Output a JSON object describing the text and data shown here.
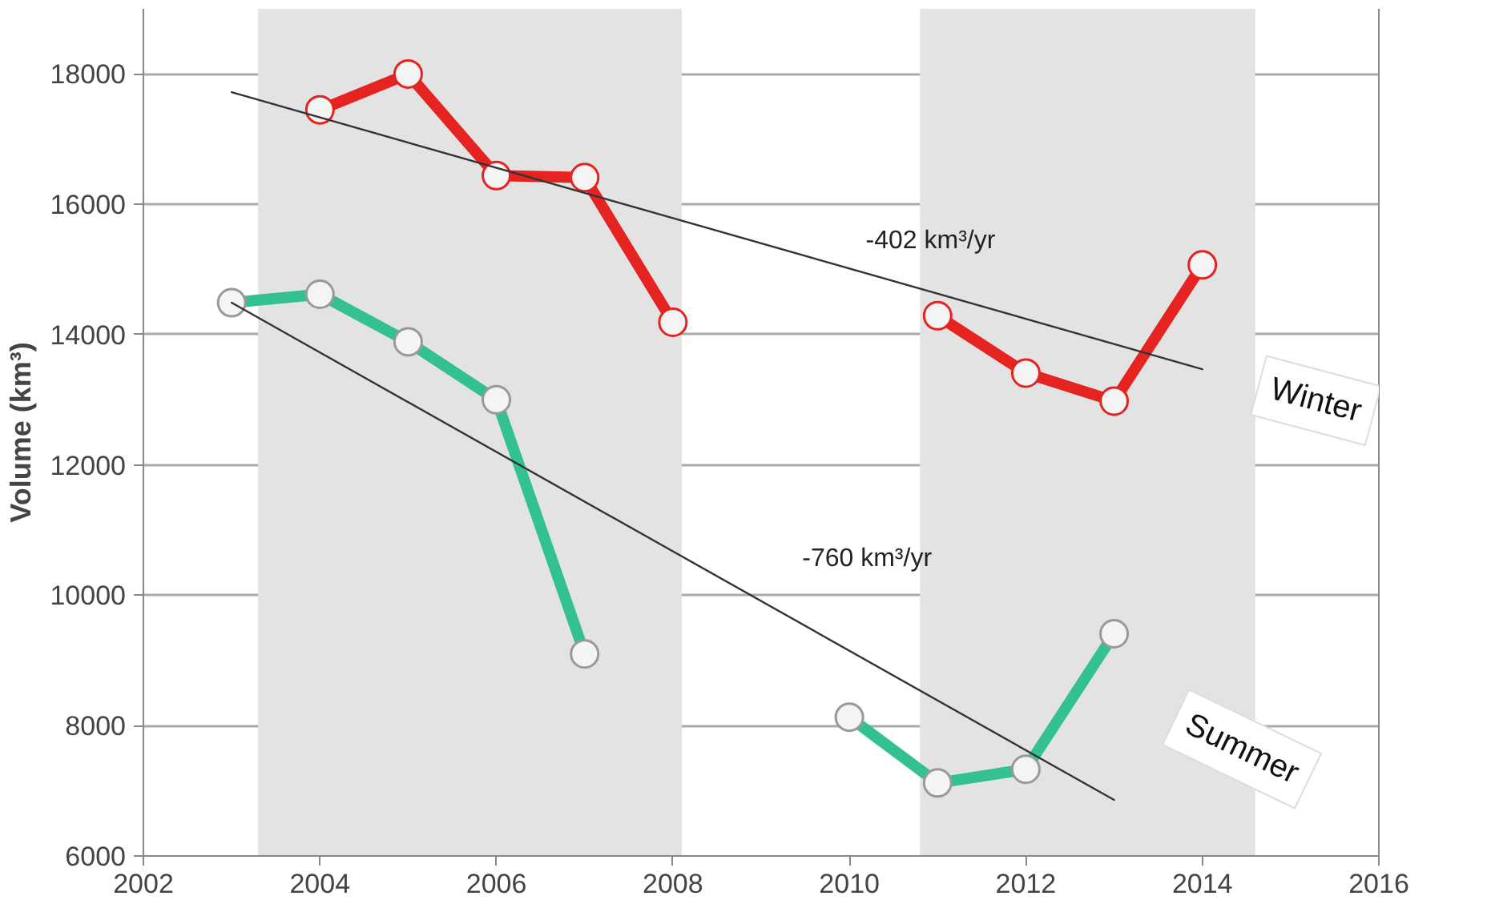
{
  "chart_data": {
    "type": "line",
    "ylabel": "Volume (km³)",
    "xlim": [
      2002,
      2016
    ],
    "ylim": [
      6000,
      19000
    ],
    "xticks": [
      2002,
      2004,
      2006,
      2008,
      2010,
      2012,
      2014,
      2016
    ],
    "yticks": [
      6000,
      8000,
      10000,
      12000,
      14000,
      16000,
      18000
    ],
    "grid": "y",
    "marker": "circle",
    "bands": [
      {
        "axis": "x",
        "from": 2003.3,
        "to": 2008.1,
        "color": "#e3e3e3"
      },
      {
        "axis": "x",
        "from": 2010.8,
        "to": 2014.6,
        "color": "#e3e3e3"
      }
    ],
    "series": [
      {
        "name": "Winter",
        "color": "#e52421",
        "x": [
          2004,
          2005,
          2006,
          2007,
          2008,
          2009,
          2011,
          2012,
          2013,
          2014
        ],
        "values": [
          17450,
          18000,
          16440,
          16410,
          14190,
          null,
          14290,
          13410,
          12980,
          15070
        ]
      },
      {
        "name": "Summer",
        "color": "#33c28f",
        "x": [
          2003,
          2004,
          2005,
          2006,
          2007,
          2008,
          2010,
          2011,
          2012,
          2013
        ],
        "values": [
          14490,
          14620,
          13890,
          13000,
          9100,
          null,
          8130,
          7120,
          7330,
          9410
        ]
      },
      {
        "type": "line",
        "marker": "none",
        "color": "#333333",
        "x": [
          2003,
          2014
        ],
        "values": [
          17720,
          13470
        ]
      },
      {
        "type": "line",
        "marker": "none",
        "color": "#333333",
        "x": [
          2003,
          2013
        ],
        "values": [
          14490,
          6860
        ]
      }
    ],
    "annotations": [
      "-402 km³/yr",
      "-760 km³/yr"
    ]
  }
}
